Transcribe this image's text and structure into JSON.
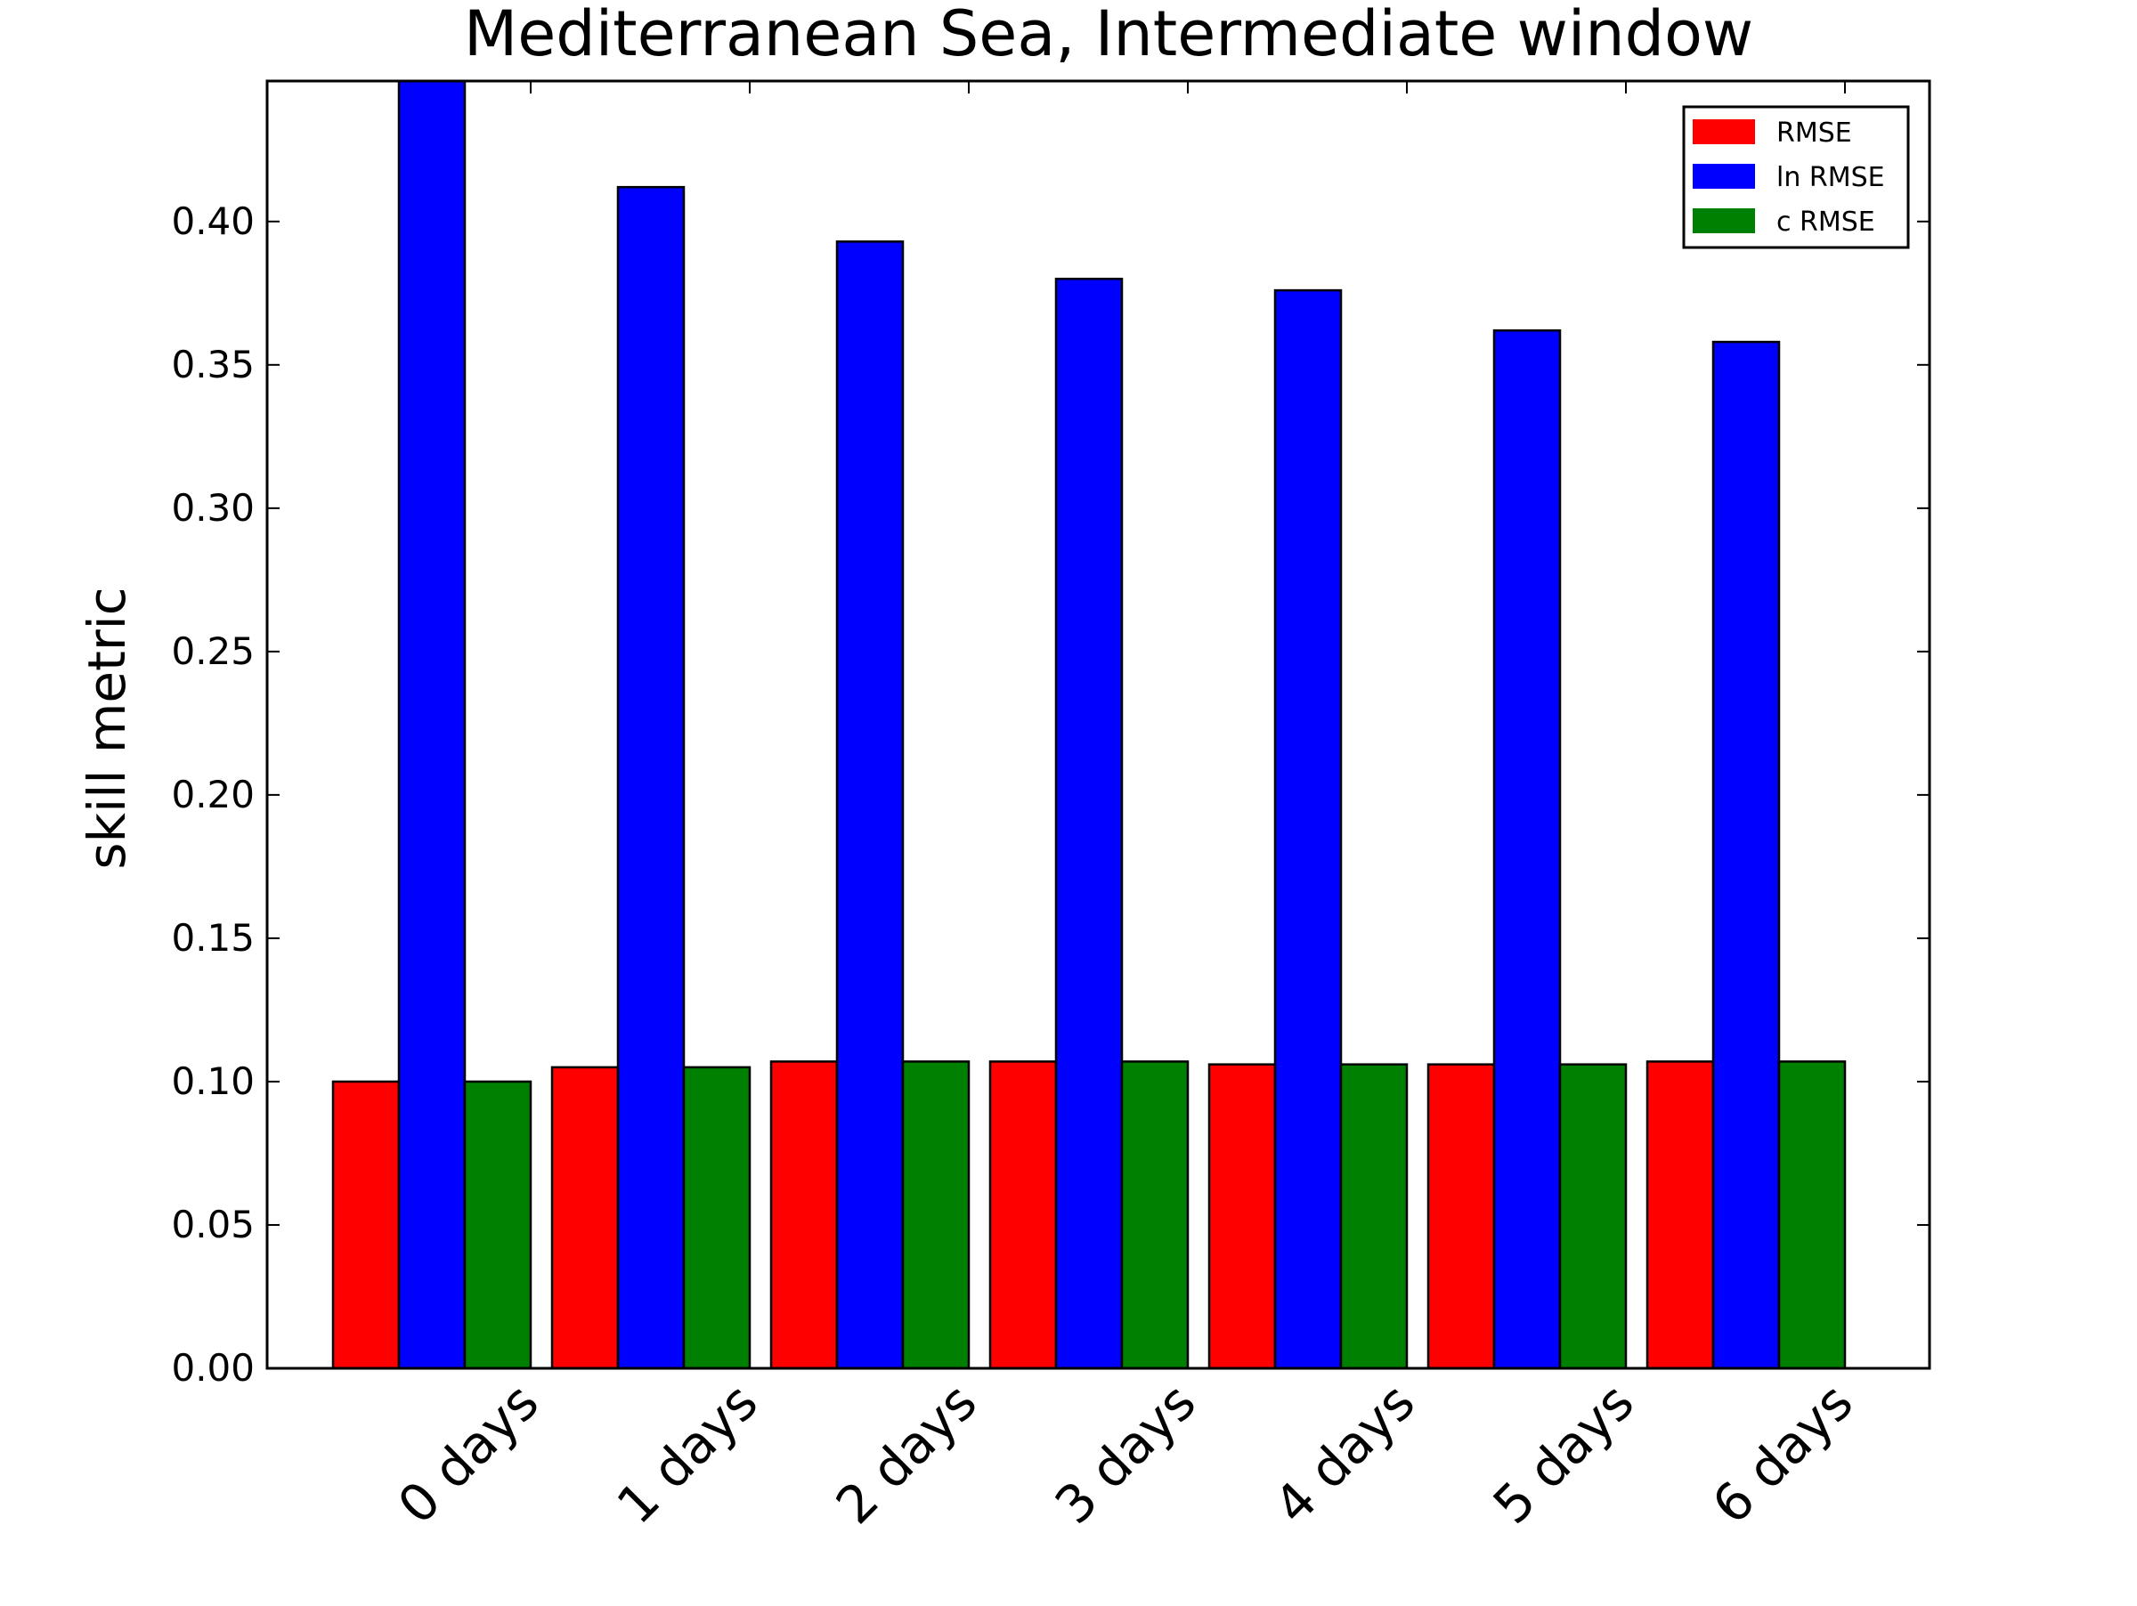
{
  "chart_data": {
    "type": "bar",
    "title": "Mediterranean Sea, Intermediate window",
    "xlabel": "",
    "ylabel": "skill metric",
    "categories": [
      "0 days",
      "1 days",
      "2 days",
      "3 days",
      "4 days",
      "5 days",
      "6 days"
    ],
    "series": [
      {
        "name": "RMSE",
        "color": "#ff0000",
        "values": [
          0.1,
          0.105,
          0.107,
          0.107,
          0.106,
          0.106,
          0.107
        ]
      },
      {
        "name": "ln RMSE",
        "color": "#0000ff",
        "values": [
          0.449,
          0.412,
          0.393,
          0.38,
          0.376,
          0.362,
          0.358
        ]
      },
      {
        "name": "c RMSE",
        "color": "#008000",
        "values": [
          0.1,
          0.105,
          0.107,
          0.107,
          0.106,
          0.106,
          0.107
        ]
      }
    ],
    "ylim": [
      0,
      0.449
    ],
    "yticks": [
      "0.00",
      "0.05",
      "0.10",
      "0.15",
      "0.20",
      "0.25",
      "0.30",
      "0.35",
      "0.40"
    ],
    "grid": false,
    "legend_position": "top-right"
  }
}
